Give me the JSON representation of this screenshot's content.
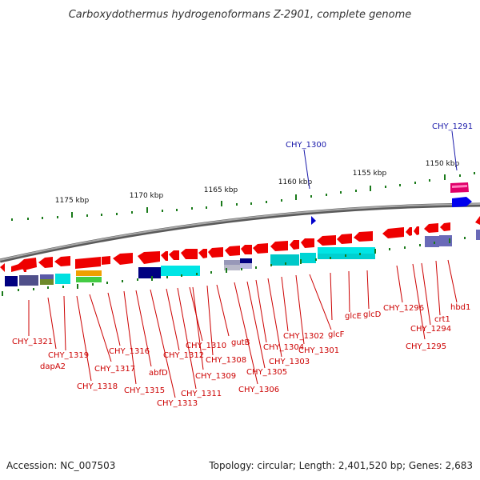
{
  "title": "Carboxydothermus hydrogenoformans Z-2901, complete genome",
  "ruler_labels": [
    "1175 kbp",
    "1170 kbp",
    "1165 kbp",
    "1160 kbp",
    "1155 kbp",
    "1150 kbp"
  ],
  "gene_labels_red": [
    "CHY_1321",
    "CHY_1319",
    "dapA2",
    "CHY_1318",
    "CHY_1317",
    "CHY_1316",
    "CHY_1315",
    "abfD",
    "CHY_1313",
    "CHY_1312",
    "CHY_1311",
    "CHY_1310",
    "CHY_1309",
    "CHY_1308",
    "gutB",
    "CHY_1306",
    "CHY_1305",
    "CHY_1304",
    "CHY_1303",
    "CHY_1302",
    "CHY_1301",
    "glcF",
    "glcE",
    "glcD",
    "CHY_1296",
    "CHY_1295",
    "CHY_1294",
    "crt1",
    "hbd1"
  ],
  "gene_labels_blue": [
    "CHY_1300",
    "CHY_1291"
  ],
  "footer": {
    "accession": "Accession: NC_007503",
    "stats": "Topology: circular; Length: 2,401,520 bp; Genes: 2,683"
  },
  "colors": {
    "forward_gene": "#ff0000",
    "cog_cyan": "#00e5e5",
    "cog_navy": "#000080",
    "cog_slate": "#6a6ab0",
    "cog_pink": "#ff2d8a",
    "cog_blue": "#0000ee",
    "backbone": "#888888"
  }
}
